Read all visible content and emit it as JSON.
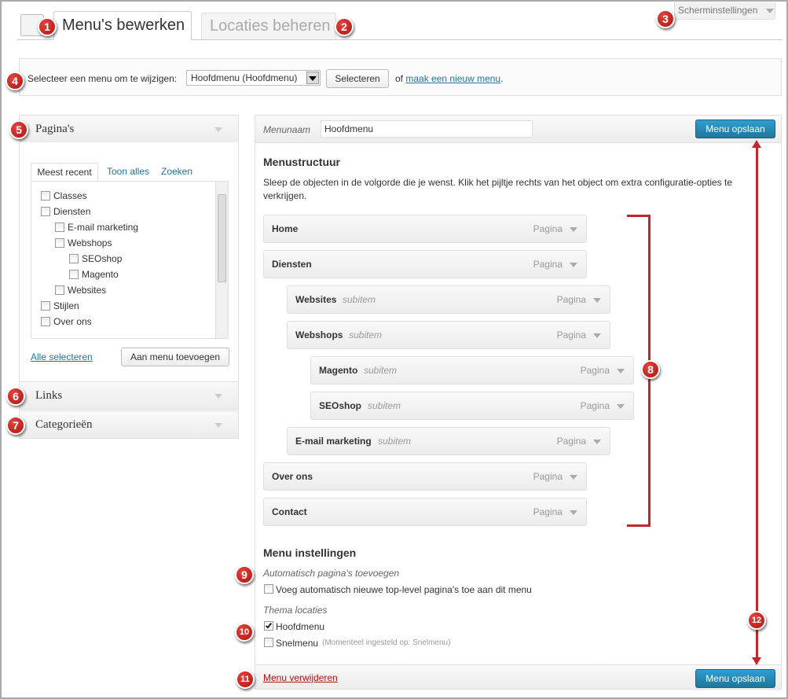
{
  "tabs": [
    "Menu's bewerken",
    "Locaties beheren"
  ],
  "screen_options": "Scherminstellingen",
  "select_bar": {
    "label": "Selecteer een menu om te wijzigen:",
    "selected": "Hoofdmenu (Hoofdmenu)",
    "button": "Selecteren",
    "or": "of",
    "new_menu_link": "maak een nieuw menu",
    "end": "."
  },
  "left_panel": {
    "pages": {
      "title": "Pagina's",
      "tabs": [
        "Meest recent",
        "Toon alles",
        "Zoeken"
      ],
      "items": [
        {
          "label": "Classes"
        },
        {
          "label": "Diensten",
          "children": [
            {
              "label": "E-mail marketing"
            },
            {
              "label": "Webshops",
              "children": [
                {
                  "label": "SEOshop"
                },
                {
                  "label": "Magento"
                }
              ]
            },
            {
              "label": "Websites"
            }
          ]
        },
        {
          "label": "Stijlen"
        },
        {
          "label": "Over ons"
        }
      ],
      "select_all": "Alle selecteren",
      "add_button": "Aan menu toevoegen"
    },
    "links": "Links",
    "categories": "Categorieën"
  },
  "menu_editor": {
    "name_label": "Menunaam",
    "name_value": "Hoofdmenu",
    "save_button": "Menu opslaan",
    "structure_title": "Menustructuur",
    "structure_help": "Sleep de objecten in de volgorde die je wenst. Klik het pijltje rechts van het object om extra configuratie-opties te verkrijgen.",
    "items": [
      {
        "title": "Home",
        "type": "Pagina"
      },
      {
        "title": "Diensten",
        "type": "Pagina",
        "children": [
          {
            "title": "Websites",
            "note": "subitem",
            "type": "Pagina"
          },
          {
            "title": "Webshops",
            "note": "subitem",
            "type": "Pagina",
            "children": [
              {
                "title": "Magento",
                "note": "subitem",
                "type": "Pagina"
              },
              {
                "title": "SEOshop",
                "note": "subitem",
                "type": "Pagina"
              }
            ]
          },
          {
            "title": "E-mail marketing",
            "note": "subitem",
            "type": "Pagina"
          }
        ]
      },
      {
        "title": "Over ons",
        "type": "Pagina"
      },
      {
        "title": "Contact",
        "type": "Pagina"
      }
    ],
    "settings_title": "Menu instellingen",
    "auto_add_label": "Automatisch pagina's toevoegen",
    "auto_add_option": "Voeg automatisch nieuwe top-level pagina's toe aan dit menu",
    "locations_label": "Thema locaties",
    "locations": [
      {
        "label": "Hoofdmenu",
        "checked": true
      },
      {
        "label": "Snelmenu",
        "checked": false,
        "note": "(Momenteel ingesteld op: Snelmenu)"
      }
    ],
    "delete_link": "Menu verwijderen",
    "save_button_bottom": "Menu opslaan"
  },
  "callouts": [
    "1",
    "2",
    "3",
    "4",
    "5",
    "6",
    "7",
    "8",
    "9",
    "10",
    "11",
    "12"
  ]
}
